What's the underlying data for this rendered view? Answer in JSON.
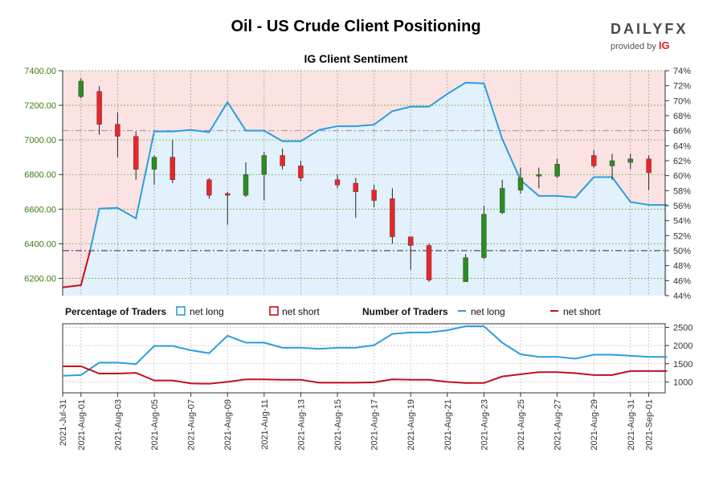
{
  "title": "Oil - US Crude Client Positioning",
  "brand": {
    "name_part1": "DAILY",
    "name_part2": "FX",
    "provided_by": "provided by",
    "partner": "IG"
  },
  "colors": {
    "up": "#2e8b22",
    "down": "#e8262a",
    "net_long": "#2b9de0",
    "net_short": "#c0101e",
    "price_axis": "#3c7a14",
    "short_bg": "#fbe3e3",
    "long_bg": "#e2f1fb"
  },
  "chart_data": {
    "type": "candlestick+line",
    "subtitle": "IG Client Sentiment",
    "x_labels": [
      "2021-Jul-31",
      "2021-Aug-01",
      "2021-Aug-03",
      "2021-Aug-05",
      "2021-Aug-07",
      "2021-Aug-09",
      "2021-Aug-11",
      "2021-Aug-13",
      "2021-Aug-15",
      "2021-Aug-17",
      "2021-Aug-19",
      "2021-Aug-21",
      "2021-Aug-23",
      "2021-Aug-25",
      "2021-Aug-27",
      "2021-Aug-29",
      "2021-Aug-31",
      "2021-Sep-01"
    ],
    "price_axis": {
      "ticks": [
        "7400.00",
        "7200.00",
        "7000.00",
        "6800.00",
        "6600.00",
        "6400.00",
        "6200.00"
      ],
      "ylim": [
        6100,
        7400
      ]
    },
    "pct_axis": {
      "ticks": [
        "74%",
        "72%",
        "70%",
        "68%",
        "66%",
        "64%",
        "62%",
        "60%",
        "58%",
        "56%",
        "54%",
        "52%",
        "50%",
        "48%",
        "46%",
        "44%"
      ],
      "ylim": [
        44,
        74
      ]
    },
    "count_axis": {
      "ticks": [
        "2500",
        "2000",
        "1500",
        "1000"
      ],
      "ylim": [
        700,
        2600
      ]
    },
    "candles": [
      {
        "d": 1,
        "o": 7250,
        "h": 7355,
        "l": 7240,
        "c": 7340
      },
      {
        "d": 2,
        "o": 7280,
        "h": 7310,
        "l": 7030,
        "c": 7090
      },
      {
        "d": 3,
        "o": 7090,
        "h": 7160,
        "l": 6900,
        "c": 7020
      },
      {
        "d": 4,
        "o": 7020,
        "h": 7050,
        "l": 6770,
        "c": 6830
      },
      {
        "d": 5,
        "o": 6830,
        "h": 6910,
        "l": 6740,
        "c": 6900
      },
      {
        "d": 6,
        "o": 6900,
        "h": 7000,
        "l": 6750,
        "c": 6770
      },
      {
        "d": 8,
        "o": 6770,
        "h": 6780,
        "l": 6660,
        "c": 6680
      },
      {
        "d": 9,
        "o": 6690,
        "h": 6700,
        "l": 6510,
        "c": 6680
      },
      {
        "d": 10,
        "o": 6680,
        "h": 6870,
        "l": 6670,
        "c": 6800
      },
      {
        "d": 11,
        "o": 6800,
        "h": 6930,
        "l": 6650,
        "c": 6910
      },
      {
        "d": 12,
        "o": 6910,
        "h": 6950,
        "l": 6830,
        "c": 6850
      },
      {
        "d": 13,
        "o": 6850,
        "h": 6880,
        "l": 6760,
        "c": 6780
      },
      {
        "d": 15,
        "o": 6770,
        "h": 6800,
        "l": 6720,
        "c": 6740
      },
      {
        "d": 16,
        "o": 6750,
        "h": 6780,
        "l": 6550,
        "c": 6700
      },
      {
        "d": 17,
        "o": 6710,
        "h": 6740,
        "l": 6610,
        "c": 6650
      },
      {
        "d": 18,
        "o": 6660,
        "h": 6720,
        "l": 6400,
        "c": 6440
      },
      {
        "d": 19,
        "o": 6440,
        "h": 6440,
        "l": 6250,
        "c": 6390
      },
      {
        "d": 20,
        "o": 6390,
        "h": 6400,
        "l": 6180,
        "c": 6190
      },
      {
        "d": 22,
        "o": 6180,
        "h": 6340,
        "l": 6180,
        "c": 6320
      },
      {
        "d": 23,
        "o": 6320,
        "h": 6620,
        "l": 6310,
        "c": 6570
      },
      {
        "d": 24,
        "o": 6580,
        "h": 6770,
        "l": 6570,
        "c": 6720
      },
      {
        "d": 25,
        "o": 6710,
        "h": 6840,
        "l": 6690,
        "c": 6780
      },
      {
        "d": 26,
        "o": 6790,
        "h": 6840,
        "l": 6720,
        "c": 6800
      },
      {
        "d": 27,
        "o": 6790,
        "h": 6890,
        "l": 6780,
        "c": 6860
      },
      {
        "d": 29,
        "o": 6910,
        "h": 6940,
        "l": 6840,
        "c": 6850
      },
      {
        "d": 30,
        "o": 6850,
        "h": 6920,
        "l": 6770,
        "c": 6880
      },
      {
        "d": 31,
        "o": 6870,
        "h": 6920,
        "l": 6830,
        "c": 6890
      },
      {
        "d": 32,
        "o": 6890,
        "h": 6910,
        "l": 6710,
        "c": 6810
      }
    ],
    "net_long_pct": [
      {
        "d": 0,
        "v": 45.1
      },
      {
        "d": 1,
        "v": 45.4
      },
      {
        "d": 2,
        "v": 55.6
      },
      {
        "d": 3,
        "v": 55.7
      },
      {
        "d": 4,
        "v": 54.3
      },
      {
        "d": 5,
        "v": 65.9
      },
      {
        "d": 6,
        "v": 65.9
      },
      {
        "d": 7,
        "v": 66.1
      },
      {
        "d": 8,
        "v": 65.8
      },
      {
        "d": 9,
        "v": 69.8
      },
      {
        "d": 10,
        "v": 66.0
      },
      {
        "d": 11,
        "v": 66.0
      },
      {
        "d": 12,
        "v": 64.6
      },
      {
        "d": 13,
        "v": 64.6
      },
      {
        "d": 14,
        "v": 66.1
      },
      {
        "d": 15,
        "v": 66.6
      },
      {
        "d": 16,
        "v": 66.6
      },
      {
        "d": 17,
        "v": 66.8
      },
      {
        "d": 18,
        "v": 68.6
      },
      {
        "d": 19,
        "v": 69.2
      },
      {
        "d": 20,
        "v": 69.2
      },
      {
        "d": 21,
        "v": 70.9
      },
      {
        "d": 22,
        "v": 72.4
      },
      {
        "d": 23,
        "v": 72.3
      },
      {
        "d": 24,
        "v": 64.9
      },
      {
        "d": 25,
        "v": 59.4
      },
      {
        "d": 26,
        "v": 57.3
      },
      {
        "d": 27,
        "v": 57.3
      },
      {
        "d": 28,
        "v": 57.1
      },
      {
        "d": 29,
        "v": 59.8
      },
      {
        "d": 30,
        "v": 59.8
      },
      {
        "d": 31,
        "v": 56.5
      },
      {
        "d": 32,
        "v": 56.1
      },
      {
        "d": 33,
        "v": 56.1
      }
    ],
    "ref_lines_pct": [
      66,
      50
    ],
    "legend": {
      "pct_label": "Percentage of Traders",
      "count_label": "Number of Traders",
      "net_long": "net long",
      "net_short": "net short"
    },
    "traders_long": [
      {
        "d": 0,
        "v": 1170
      },
      {
        "d": 1,
        "v": 1190
      },
      {
        "d": 2,
        "v": 1530
      },
      {
        "d": 3,
        "v": 1530
      },
      {
        "d": 4,
        "v": 1490
      },
      {
        "d": 5,
        "v": 1990
      },
      {
        "d": 6,
        "v": 1990
      },
      {
        "d": 7,
        "v": 1870
      },
      {
        "d": 8,
        "v": 1790
      },
      {
        "d": 9,
        "v": 2270
      },
      {
        "d": 10,
        "v": 2080
      },
      {
        "d": 11,
        "v": 2080
      },
      {
        "d": 12,
        "v": 1940
      },
      {
        "d": 13,
        "v": 1940
      },
      {
        "d": 14,
        "v": 1910
      },
      {
        "d": 15,
        "v": 1940
      },
      {
        "d": 16,
        "v": 1940
      },
      {
        "d": 17,
        "v": 2010
      },
      {
        "d": 18,
        "v": 2320
      },
      {
        "d": 19,
        "v": 2360
      },
      {
        "d": 20,
        "v": 2360
      },
      {
        "d": 21,
        "v": 2420
      },
      {
        "d": 22,
        "v": 2530
      },
      {
        "d": 23,
        "v": 2530
      },
      {
        "d": 24,
        "v": 2080
      },
      {
        "d": 25,
        "v": 1760
      },
      {
        "d": 26,
        "v": 1690
      },
      {
        "d": 27,
        "v": 1690
      },
      {
        "d": 28,
        "v": 1640
      },
      {
        "d": 29,
        "v": 1750
      },
      {
        "d": 30,
        "v": 1750
      },
      {
        "d": 31,
        "v": 1720
      },
      {
        "d": 32,
        "v": 1690
      },
      {
        "d": 33,
        "v": 1690
      }
    ],
    "traders_short": [
      {
        "d": 0,
        "v": 1430
      },
      {
        "d": 1,
        "v": 1430
      },
      {
        "d": 2,
        "v": 1230
      },
      {
        "d": 3,
        "v": 1230
      },
      {
        "d": 4,
        "v": 1250
      },
      {
        "d": 5,
        "v": 1040
      },
      {
        "d": 6,
        "v": 1040
      },
      {
        "d": 7,
        "v": 960
      },
      {
        "d": 8,
        "v": 950
      },
      {
        "d": 9,
        "v": 1000
      },
      {
        "d": 10,
        "v": 1070
      },
      {
        "d": 11,
        "v": 1070
      },
      {
        "d": 12,
        "v": 1060
      },
      {
        "d": 13,
        "v": 1060
      },
      {
        "d": 14,
        "v": 980
      },
      {
        "d": 15,
        "v": 980
      },
      {
        "d": 16,
        "v": 980
      },
      {
        "d": 17,
        "v": 990
      },
      {
        "d": 18,
        "v": 1070
      },
      {
        "d": 19,
        "v": 1060
      },
      {
        "d": 20,
        "v": 1060
      },
      {
        "d": 21,
        "v": 1000
      },
      {
        "d": 22,
        "v": 970
      },
      {
        "d": 23,
        "v": 970
      },
      {
        "d": 24,
        "v": 1150
      },
      {
        "d": 25,
        "v": 1210
      },
      {
        "d": 26,
        "v": 1270
      },
      {
        "d": 27,
        "v": 1270
      },
      {
        "d": 28,
        "v": 1240
      },
      {
        "d": 29,
        "v": 1190
      },
      {
        "d": 30,
        "v": 1190
      },
      {
        "d": 31,
        "v": 1300
      },
      {
        "d": 32,
        "v": 1300
      },
      {
        "d": 33,
        "v": 1300
      }
    ]
  }
}
